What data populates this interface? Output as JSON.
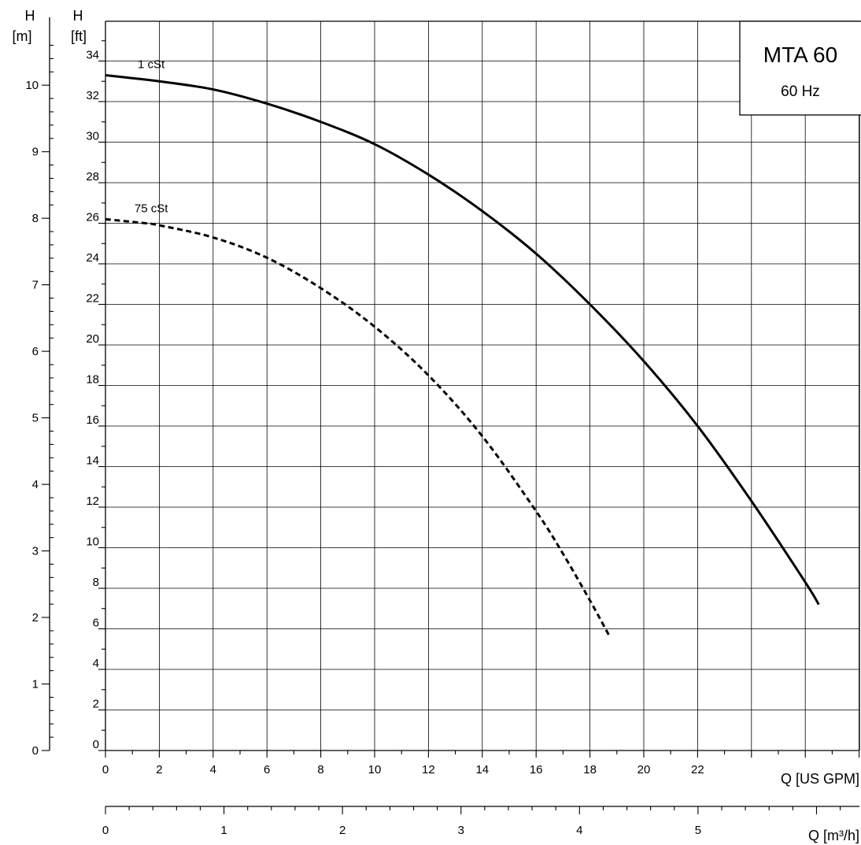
{
  "chart_data": {
    "type": "line",
    "model_box": {
      "title": "MTA 60",
      "subtitle": "60 Hz"
    },
    "axes": {
      "y_ft": {
        "label_line1": "H",
        "label_line2": "[ft]",
        "min": 0,
        "max": 35,
        "major_step": 2,
        "minor_step": 1,
        "ticks": [
          "0",
          "2",
          "4",
          "6",
          "8",
          "10",
          "12",
          "14",
          "16",
          "18",
          "20",
          "22",
          "24",
          "26",
          "28",
          "30",
          "32",
          "34"
        ]
      },
      "y_m": {
        "label_line1": "H",
        "label_line2": "[m]",
        "min": 0,
        "max": 10.668,
        "major_step": 1,
        "minor_step": 0.2,
        "ticks": [
          "0",
          "1",
          "2",
          "3",
          "4",
          "5",
          "6",
          "7",
          "8",
          "9",
          "10"
        ]
      },
      "x_gpm": {
        "label": "Q [US GPM]",
        "min": 0,
        "max": 28,
        "major_step": 2,
        "minor_step": 1,
        "ticks": [
          "0",
          "2",
          "4",
          "6",
          "8",
          "10",
          "12",
          "14",
          "16",
          "18",
          "20",
          "22"
        ]
      },
      "x_m3h": {
        "label": "Q [m³/h]",
        "min": 0,
        "max": 6.359,
        "major_step": 1,
        "minor_step": 0.2,
        "ticks": [
          "0",
          "1",
          "2",
          "3",
          "4",
          "5"
        ]
      }
    },
    "grid": true,
    "series": [
      {
        "name": "1 cSt",
        "style": "solid",
        "x": [
          0,
          2,
          4,
          6,
          8,
          10,
          12,
          14,
          16,
          18,
          20,
          22,
          24,
          26,
          26.5
        ],
        "y": [
          33.3,
          33.0,
          32.6,
          31.9,
          31.0,
          29.9,
          28.4,
          26.6,
          24.5,
          22.0,
          19.2,
          16.0,
          12.3,
          8.3,
          7.2
        ]
      },
      {
        "name": "75 cSt",
        "style": "dashed",
        "x": [
          0,
          1.5,
          2,
          4,
          6,
          8,
          10,
          12,
          14,
          16,
          17,
          18,
          18.7
        ],
        "y": [
          26.2,
          26.0,
          25.9,
          25.3,
          24.3,
          22.8,
          20.9,
          18.5,
          15.5,
          11.8,
          9.7,
          7.4,
          5.7
        ]
      }
    ]
  }
}
